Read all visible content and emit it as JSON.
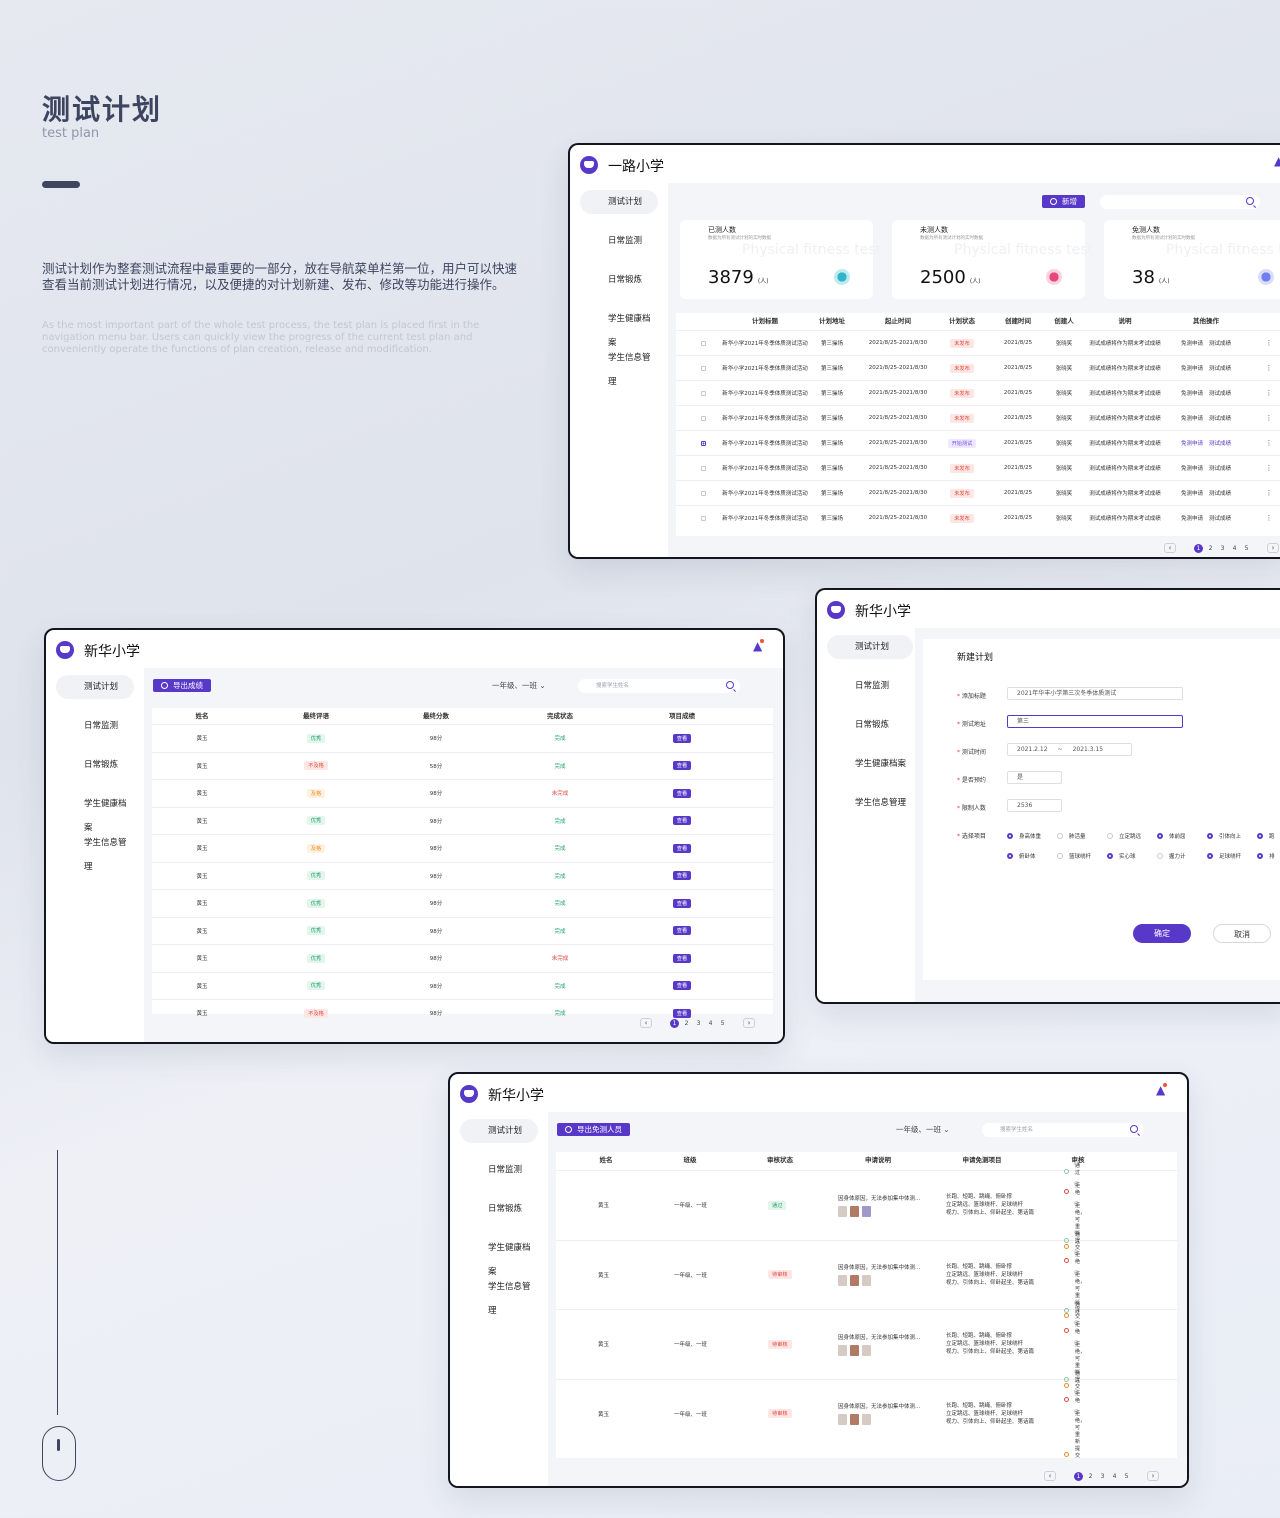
{
  "intro": {
    "title": "测试计划",
    "subtitle": "test plan",
    "desc_cn": "测试计划作为整套测试流程中最重要的一部分，放在导航菜单栏第一位，用户可以快速查看当前测试计划进行情况，以及便捷的对计划新建、发布、修改等功能进行操作。",
    "desc_en": "As the most important part of the whole test process, the test plan is placed first in the navigation menu bar. Users can quickly view the progress of the current test plan and conveniently operate the functions of plan creation, release and modification."
  },
  "nav": [
    "测试计划",
    "日常监测",
    "日常锻炼",
    "学生健康档案",
    "学生信息管理"
  ],
  "colors": {
    "accent": "#5838c8",
    "green": "#22a06b",
    "red": "#e0483f",
    "orange": "#ef8a25"
  },
  "w1": {
    "school": "一路小学",
    "add_label": "新增",
    "stats": [
      {
        "title": "已测人数",
        "desc": "数据为所有测试计划的实时数据",
        "watermark": "Physical fitness test",
        "value": "3879",
        "unit": "(人)"
      },
      {
        "title": "未测人数",
        "desc": "数据为所有测试计划的实时数据",
        "watermark": "Physical fitness test",
        "value": "2500",
        "unit": "(人)"
      },
      {
        "title": "免测人数",
        "desc": "数据为所有测试计划的实时数据",
        "watermark": "Physical fitness test",
        "value": "38",
        "unit": "(人)"
      }
    ],
    "headers": [
      "计划标题",
      "计划地址",
      "起止时间",
      "计划状态",
      "创建时间",
      "创建人",
      "说明",
      "其他操作"
    ],
    "rows": [
      {
        "title": "新华小学2021年冬季体质测试活动",
        "addr": "第三操场",
        "time": "2021/8/25-2021/8/30",
        "status": "未发布",
        "created": "2021/8/25",
        "creator": "张晓笑",
        "note": "测试成绩将作为期末考试成绩",
        "op1": "免测申请",
        "op2": "测试成绩"
      },
      {
        "title": "新华小学2021年冬季体质测试活动",
        "addr": "第三操场",
        "time": "2021/8/25-2021/8/30",
        "status": "未发布",
        "created": "2021/8/25",
        "creator": "张晓笑",
        "note": "测试成绩将作为期末考试成绩",
        "op1": "免测申请",
        "op2": "测试成绩"
      },
      {
        "title": "新华小学2021年冬季体质测试活动",
        "addr": "第三操场",
        "time": "2021/8/25-2021/8/30",
        "status": "未发布",
        "created": "2021/8/25",
        "creator": "张晓笑",
        "note": "测试成绩将作为期末考试成绩",
        "op1": "免测申请",
        "op2": "测试成绩"
      },
      {
        "title": "新华小学2021年冬季体质测试活动",
        "addr": "第三操场",
        "time": "2021/8/25-2021/8/30",
        "status": "未发布",
        "created": "2021/8/25",
        "creator": "张晓笑",
        "note": "测试成绩将作为期末考试成绩",
        "op1": "免测申请",
        "op2": "测试成绩"
      },
      {
        "title": "新华小学2021年冬季体质测试活动",
        "addr": "第三操场",
        "time": "2021/8/25-2021/8/30",
        "status": "开始测试",
        "created": "2021/8/25",
        "creator": "张晓笑",
        "note": "测试成绩将作为期末考试成绩",
        "op1": "免测申请",
        "op2": "测试成绩"
      },
      {
        "title": "新华小学2021年冬季体质测试活动",
        "addr": "第三操场",
        "time": "2021/8/25-2021/8/30",
        "status": "未发布",
        "created": "2021/8/25",
        "creator": "张晓笑",
        "note": "测试成绩将作为期末考试成绩",
        "op1": "免测申请",
        "op2": "测试成绩"
      },
      {
        "title": "新华小学2021年冬季体质测试活动",
        "addr": "第三操场",
        "time": "2021/8/25-2021/8/30",
        "status": "未发布",
        "created": "2021/8/25",
        "creator": "张晓笑",
        "note": "测试成绩将作为期末考试成绩",
        "op1": "免测申请",
        "op2": "测试成绩"
      },
      {
        "title": "新华小学2021年冬季体质测试活动",
        "addr": "第三操场",
        "time": "2021/8/25-2021/8/30",
        "status": "未发布",
        "created": "2021/8/25",
        "creator": "张晓笑",
        "note": "测试成绩将作为期末考试成绩",
        "op1": "免测申请",
        "op2": "测试成绩"
      }
    ]
  },
  "w2": {
    "school": "新华小学",
    "export_label": "导出成绩",
    "class_select": "一年级、一班",
    "search_placeholder": "搜索学生姓名",
    "headers": [
      "姓名",
      "最终评语",
      "最终分数",
      "完成状态",
      "项目成绩"
    ],
    "rows": [
      {
        "name": "黄玉",
        "eval": "优秀",
        "score": "98分",
        "state": "完成",
        "btn": "查看"
      },
      {
        "name": "黄玉",
        "eval": "不及格",
        "score": "58分",
        "state": "完成",
        "btn": "查看"
      },
      {
        "name": "黄玉",
        "eval": "及格",
        "score": "98分",
        "state": "未完成",
        "btn": "查看"
      },
      {
        "name": "黄玉",
        "eval": "优秀",
        "score": "98分",
        "state": "完成",
        "btn": "查看"
      },
      {
        "name": "黄玉",
        "eval": "及格",
        "score": "98分",
        "state": "完成",
        "btn": "查看"
      },
      {
        "name": "黄玉",
        "eval": "优秀",
        "score": "98分",
        "state": "完成",
        "btn": "查看"
      },
      {
        "name": "黄玉",
        "eval": "优秀",
        "score": "98分",
        "state": "完成",
        "btn": "查看"
      },
      {
        "name": "黄玉",
        "eval": "优秀",
        "score": "98分",
        "state": "完成",
        "btn": "查看"
      },
      {
        "name": "黄玉",
        "eval": "优秀",
        "score": "98分",
        "state": "未完成",
        "btn": "查看"
      },
      {
        "name": "黄玉",
        "eval": "优秀",
        "score": "98分",
        "state": "完成",
        "btn": "查看"
      },
      {
        "name": "黄玉",
        "eval": "不及格",
        "score": "98分",
        "state": "完成",
        "btn": "查看"
      }
    ]
  },
  "w3": {
    "school": "新华小学",
    "form_title": "新建计划",
    "fields": {
      "title_label": "添加标题",
      "title_value": "2021年华丰小学第三次冬季体质测试",
      "addr_label": "测试地址",
      "addr_value": "第三",
      "time_label": "测试时间",
      "time_start": "2021.2.12",
      "time_sep": "~",
      "time_end": "2021.3.15",
      "reserve_label": "是否预约",
      "reserve_value": "是",
      "limit_label": "限制人数",
      "limit_value": "2536",
      "items_label": "选择项目"
    },
    "items_row1": [
      "身高体重",
      "肺活量",
      "立定跳远",
      "体前屈",
      "引体向上",
      "跑"
    ],
    "items_row2": [
      "俯卧体",
      "篮球绕杆",
      "实心球",
      "握力计",
      "足球绕杆",
      "排"
    ],
    "confirm": "确定",
    "cancel": "取消"
  },
  "w4": {
    "school": "新华小学",
    "export_label": "导出免测人员",
    "class_select": "一年级、一班",
    "search_placeholder": "搜索学生姓名",
    "headers": [
      "姓名",
      "班级",
      "审核状态",
      "申请说明",
      "申请免测项目",
      "审核"
    ],
    "options": [
      "通过",
      "拒绝",
      "拒绝，可重新提交"
    ],
    "rows": [
      {
        "name": "黄玉",
        "cls": "一年级、一班",
        "status": "通过",
        "reason": "因身体原因，无法参加集中体测...",
        "items": [
          "长跑、短跑、跳绳、俯卧撑",
          "立定跳远、篮球绕杆、足球绕杆",
          "视力、引体向上、仰卧起坐、第话篇"
        ]
      },
      {
        "name": "黄玉",
        "cls": "一年级、一班",
        "status": "待审核",
        "reason": "因身体原因，无法参加集中体测...",
        "items": [
          "长跑、短跑、跳绳、俯卧撑",
          "立定跳远、篮球绕杆、足球绕杆",
          "视力、引体向上、仰卧起坐、第话篇"
        ]
      },
      {
        "name": "黄玉",
        "cls": "一年级、一班",
        "status": "待审核",
        "reason": "因身体原因，无法参加集中体测...",
        "items": [
          "长跑、短跑、跳绳、俯卧撑",
          "立定跳远、篮球绕杆、足球绕杆",
          "视力、引体向上、仰卧起坐、第话篇"
        ]
      },
      {
        "name": "黄玉",
        "cls": "一年级、一班",
        "status": "待审核",
        "reason": "因身体原因，无法参加集中体测...",
        "items": [
          "长跑、短跑、跳绳、俯卧撑",
          "立定跳远、篮球绕杆、足球绕杆",
          "视力、引体向上、仰卧起坐、第话篇"
        ]
      }
    ]
  },
  "pager": [
    "1",
    "2",
    "3",
    "4",
    "5"
  ]
}
